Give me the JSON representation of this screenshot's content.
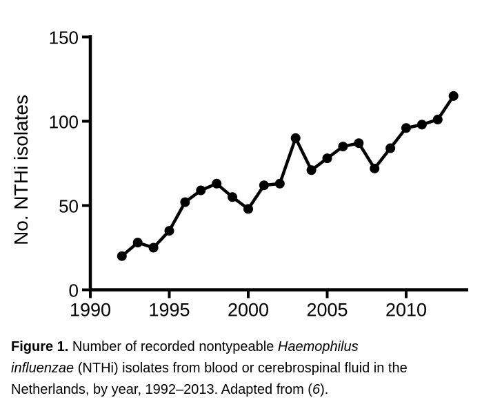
{
  "page": {
    "background": "#ffffff",
    "ink_color": "#000000"
  },
  "chart_data": {
    "type": "line",
    "title": "",
    "xlabel": "",
    "ylabel": "No. NTHi isolates",
    "xlim": [
      1990,
      2013.8
    ],
    "ylim": [
      0,
      150
    ],
    "x_ticks": [
      1990,
      1995,
      2000,
      2005,
      2010
    ],
    "y_ticks": [
      0,
      50,
      100,
      150
    ],
    "grid": false,
    "legend": "none",
    "marker": "filled-circle",
    "line_color": "#000000",
    "series": [
      {
        "name": "No. NTHi isolates per year",
        "x": [
          1992,
          1993,
          1994,
          1995,
          1996,
          1997,
          1998,
          1999,
          2000,
          2001,
          2002,
          2003,
          2004,
          2005,
          2006,
          2007,
          2008,
          2009,
          2010,
          2011,
          2012,
          2013
        ],
        "y": [
          20,
          28,
          25,
          35,
          52,
          59,
          63,
          55,
          48,
          62,
          63,
          90,
          71,
          78,
          85,
          87,
          72,
          84,
          96,
          98,
          101,
          115
        ]
      }
    ]
  },
  "caption": {
    "lines": [
      [
        {
          "t": "Figure 1.",
          "b": true
        },
        {
          "t": " Number of recorded nontypeable "
        },
        {
          "t": "Haemophilus",
          "i": true
        }
      ],
      [
        {
          "t": "influenzae",
          "i": true
        },
        {
          "t": " (NTHi) isolates from blood or cerebrospinal fluid in the"
        }
      ],
      [
        {
          "t": "Netherlands, by year, 1992–2013. Adapted from ("
        },
        {
          "t": "6",
          "i": true
        },
        {
          "t": ")."
        }
      ]
    ]
  }
}
